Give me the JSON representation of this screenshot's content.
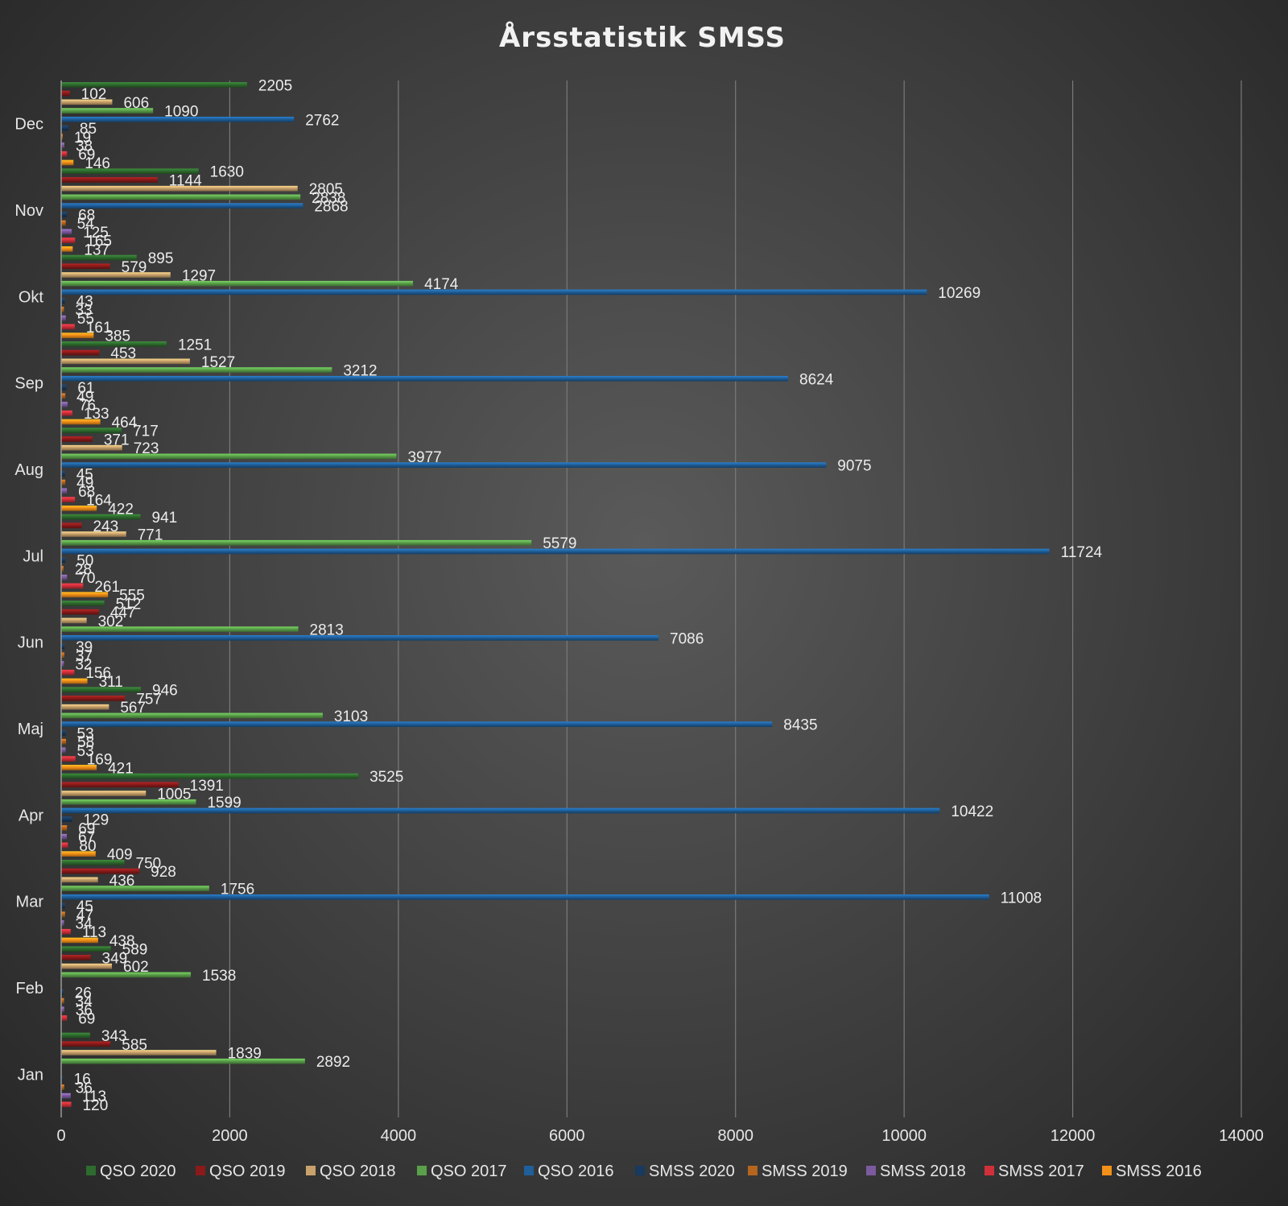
{
  "chart_data": {
    "type": "bar",
    "orientation": "horizontal",
    "title": "Årsstatistik SMSS",
    "categories": [
      "Jan",
      "Feb",
      "Mar",
      "Apr",
      "Maj",
      "Jun",
      "Jul",
      "Aug",
      "Sep",
      "Okt",
      "Nov",
      "Dec"
    ],
    "xlim": [
      0,
      14000
    ],
    "xticks": [
      0,
      2000,
      4000,
      6000,
      8000,
      10000,
      12000,
      14000
    ],
    "grid": true,
    "legend_position": "bottom",
    "series": [
      {
        "name": "QSO 2020",
        "color": "#2e6b2e",
        "values": [
          343,
          589,
          750,
          3525,
          946,
          512,
          941,
          717,
          1251,
          895,
          1630,
          2205
        ]
      },
      {
        "name": "QSO 2019",
        "color": "#8b1a1a",
        "values": [
          585,
          349,
          928,
          1391,
          757,
          447,
          243,
          371,
          453,
          579,
          1144,
          102
        ]
      },
      {
        "name": "QSO 2018",
        "color": "#c9a26b",
        "values": [
          1839,
          602,
          436,
          1005,
          567,
          302,
          771,
          723,
          1527,
          1297,
          2805,
          606
        ]
      },
      {
        "name": "QSO 2017",
        "color": "#5aa04a",
        "values": [
          2892,
          1538,
          1756,
          1599,
          3103,
          2813,
          5579,
          3977,
          3212,
          4174,
          2838,
          1090
        ]
      },
      {
        "name": "QSO 2016",
        "color": "#1f5f9a",
        "values": [
          null,
          null,
          11008,
          10422,
          8435,
          7086,
          11724,
          9075,
          8624,
          10269,
          2868,
          2762
        ]
      },
      {
        "name": "SMSS 2020",
        "color": "#173a5e",
        "values": [
          16,
          26,
          45,
          129,
          53,
          39,
          50,
          45,
          61,
          43,
          68,
          85
        ]
      },
      {
        "name": "SMSS 2019",
        "color": "#b5651d",
        "values": [
          36,
          34,
          47,
          69,
          58,
          37,
          28,
          49,
          49,
          33,
          54,
          19
        ]
      },
      {
        "name": "SMSS 2018",
        "color": "#7b5a9e",
        "values": [
          113,
          36,
          34,
          67,
          53,
          32,
          70,
          68,
          76,
          55,
          125,
          38
        ]
      },
      {
        "name": "SMSS 2017",
        "color": "#d0303a",
        "values": [
          120,
          69,
          113,
          80,
          169,
          156,
          261,
          164,
          133,
          161,
          165,
          69
        ]
      },
      {
        "name": "SMSS 2016",
        "color": "#f39019",
        "values": [
          null,
          null,
          438,
          409,
          421,
          311,
          555,
          422,
          464,
          385,
          137,
          146
        ]
      }
    ]
  }
}
